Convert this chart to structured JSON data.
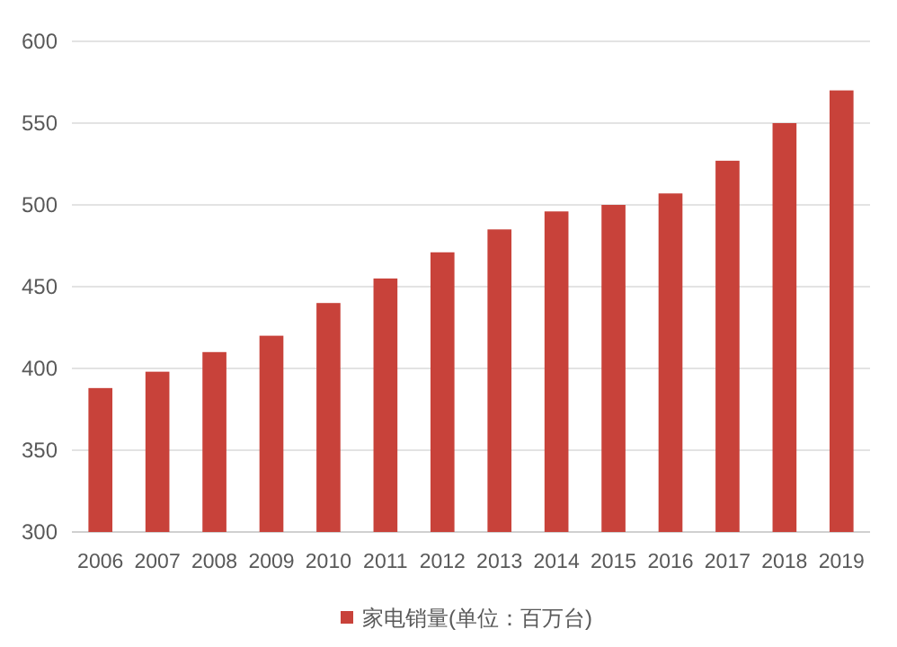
{
  "chart_data": {
    "type": "bar",
    "categories": [
      "2006",
      "2007",
      "2008",
      "2009",
      "2010",
      "2011",
      "2012",
      "2013",
      "2014",
      "2015",
      "2016",
      "2017",
      "2018",
      "2019"
    ],
    "series": [
      {
        "name": "家电销量(单位：百万台)",
        "color": "#c8423a",
        "values": [
          388,
          398,
          410,
          420,
          440,
          455,
          471,
          485,
          496,
          500,
          507,
          527,
          550,
          570
        ]
      }
    ],
    "ylim": [
      300,
      600
    ],
    "yticks": [
      300,
      350,
      400,
      450,
      500,
      550,
      600
    ],
    "grid": "y",
    "legend": "bottom"
  }
}
